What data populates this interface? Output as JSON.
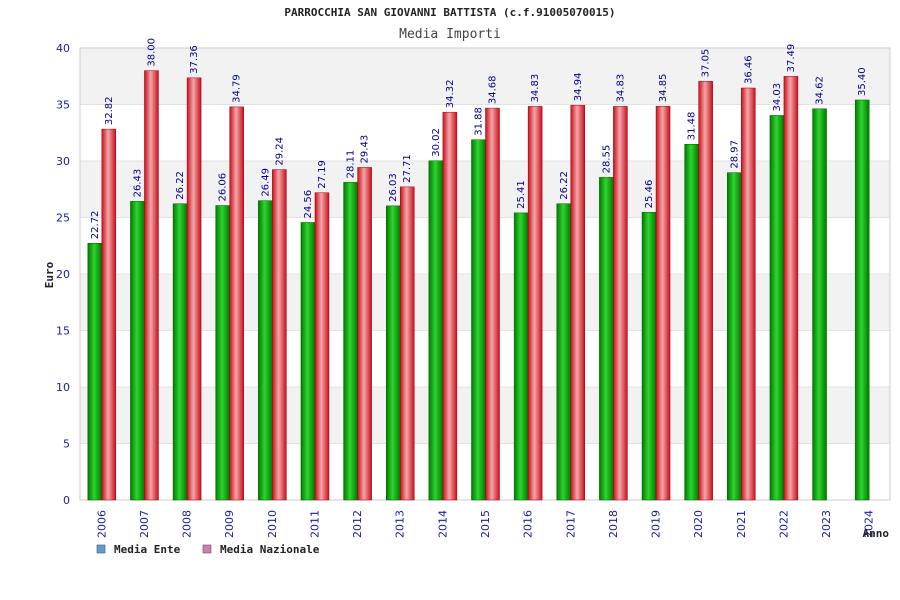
{
  "chart_data": {
    "type": "bar",
    "title": "PARROCCHIA SAN GIOVANNI BATTISTA (c.f.91005070015)",
    "subtitle": "Media Importi",
    "xlabel": "Anno",
    "ylabel": "Euro",
    "ylim": [
      0,
      40
    ],
    "yticks": [
      0,
      5,
      10,
      15,
      20,
      25,
      30,
      35,
      40
    ],
    "grid": true,
    "legend_position": "bottom-left",
    "categories": [
      "2006",
      "2007",
      "2008",
      "2009",
      "2010",
      "2011",
      "2012",
      "2013",
      "2014",
      "2015",
      "2016",
      "2017",
      "2018",
      "2019",
      "2020",
      "2021",
      "2022",
      "2023",
      "2024"
    ],
    "series": [
      {
        "name": "Media Ente",
        "color": "#00aa00",
        "legend_color": "#5b9bd5",
        "values": [
          22.72,
          26.43,
          26.22,
          26.06,
          26.49,
          24.56,
          28.11,
          26.03,
          30.02,
          31.88,
          25.41,
          26.22,
          28.55,
          25.46,
          31.48,
          28.97,
          34.03,
          34.62,
          35.4
        ],
        "labels": [
          "22.72",
          "26.43",
          "26.22",
          "26.06",
          "26.49",
          "24.56",
          "28.11",
          "26.03",
          "30.02",
          "31.88",
          "25.41",
          "26.22",
          "28.55",
          "25.46",
          "31.48",
          "28.97",
          "34.03",
          "34.62",
          "35.40"
        ]
      },
      {
        "name": "Media Nazionale",
        "color": "#e8202a",
        "legend_color": "#d47bb0",
        "values": [
          32.82,
          38.0,
          37.36,
          34.79,
          29.24,
          27.19,
          29.43,
          27.71,
          34.32,
          34.68,
          34.83,
          34.94,
          34.83,
          34.85,
          37.05,
          36.46,
          37.49,
          null,
          null
        ],
        "labels": [
          "32.82",
          "38.00",
          "37.36",
          "34.79",
          "29.24",
          "27.19",
          "29.43",
          "27.71",
          "34.32",
          "34.68",
          "34.83",
          "34.94",
          "34.83",
          "34.85",
          "37.05",
          "36.46",
          "37.49",
          null,
          null
        ]
      }
    ]
  }
}
